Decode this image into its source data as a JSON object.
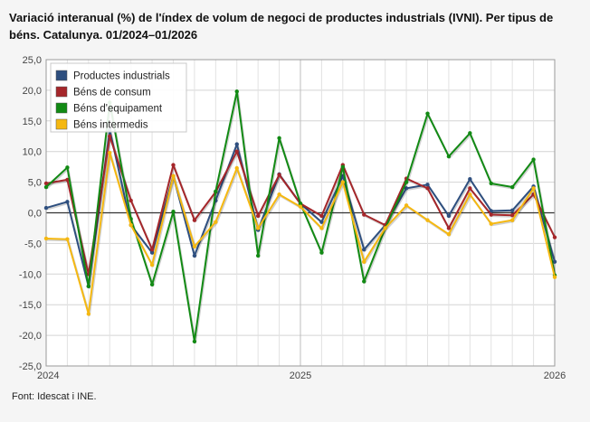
{
  "title": "Variació interanual (%) de l'índex de volum de negoci de productes industrials (IVNI). Per tipus de béns. Catalunya. 01/2024–01/2026",
  "source": "Font: Idescat i INE.",
  "chart_data": {
    "type": "line",
    "title": "Variació interanual (%) de l'índex de volum de negoci de productes industrials (IVNI). Per tipus de béns. Catalunya. 01/2024–01/2026",
    "xlabel": "",
    "ylabel": "",
    "ylim": [
      -25,
      25
    ],
    "yticks": [
      -25,
      -20,
      -15,
      -10,
      -5,
      0,
      5,
      10,
      15,
      20,
      25
    ],
    "ytick_labels": [
      "-25,0",
      "-20,0",
      "-15,0",
      "-10,0",
      "-5,0",
      "0,0",
      "5,0",
      "10,0",
      "15,0",
      "20,0",
      "25,0"
    ],
    "x": [
      "01/2024",
      "02/2024",
      "03/2024",
      "04/2024",
      "05/2024",
      "06/2024",
      "07/2024",
      "08/2024",
      "09/2024",
      "10/2024",
      "11/2024",
      "12/2024",
      "01/2025",
      "02/2025",
      "03/2025",
      "04/2025",
      "05/2025",
      "06/2025",
      "07/2025",
      "08/2025",
      "09/2025",
      "10/2025",
      "11/2025",
      "12/2025",
      "01/2026"
    ],
    "xticks": [
      {
        "index": 0,
        "label": "2024"
      },
      {
        "index": 12,
        "label": "2025"
      },
      {
        "index": 24,
        "label": "2026"
      }
    ],
    "grid": true,
    "legend_position": "top-left",
    "series": [
      {
        "name": "Productes industrials",
        "color": "#2e4f7f",
        "values": [
          0.8,
          1.8,
          -12.0,
          13.5,
          -2.0,
          -6.5,
          6.0,
          -7.0,
          2.0,
          11.2,
          -2.8,
          6.3,
          1.5,
          -1.5,
          6.0,
          -6.0,
          -2.0,
          4.0,
          4.6,
          -0.5,
          5.5,
          0.3,
          0.4,
          4.3,
          -8.0
        ]
      },
      {
        "name": "Béns de consum",
        "color": "#a5262a",
        "values": [
          4.8,
          5.4,
          -10.0,
          12.5,
          2.0,
          -6.0,
          7.8,
          -1.2,
          3.4,
          10.0,
          -0.5,
          6.2,
          1.5,
          -0.5,
          7.8,
          -0.3,
          -2.0,
          5.6,
          4.0,
          -2.5,
          4.0,
          -0.3,
          -0.4,
          3.0,
          -4.0
        ]
      },
      {
        "name": "Béns d'equipament",
        "color": "#128a14",
        "values": [
          4.2,
          7.4,
          -12.0,
          18.0,
          -1.0,
          -11.7,
          0.2,
          -21.0,
          3.5,
          19.8,
          -7.0,
          12.2,
          1.5,
          -6.5,
          7.5,
          -11.2,
          -2.5,
          5.0,
          16.2,
          9.2,
          13.0,
          4.8,
          4.2,
          8.7,
          -10.2
        ]
      },
      {
        "name": "Béns intermedis",
        "color": "#f5b811",
        "values": [
          -4.2,
          -4.3,
          -16.5,
          9.8,
          -2.0,
          -8.5,
          6.0,
          -5.5,
          -1.5,
          7.3,
          -2.5,
          3.0,
          1.0,
          -2.5,
          5.0,
          -8.0,
          -2.5,
          1.2,
          -1.2,
          -3.5,
          3.0,
          -1.8,
          -1.2,
          4.0,
          -10.5
        ]
      }
    ]
  }
}
